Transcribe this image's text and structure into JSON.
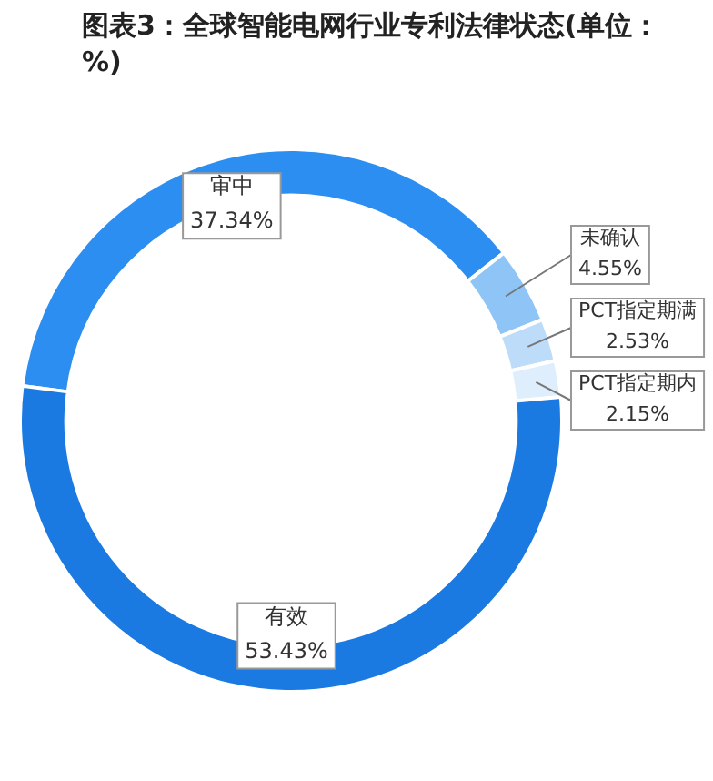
{
  "chart_data": {
    "type": "donut",
    "title": "图表3：全球智能电网行业专利法律状态(单位：%)",
    "categories": [
      "审中",
      "未确认",
      "PCT指定期满",
      "PCT指定期内",
      "有效"
    ],
    "values": [
      37.34,
      4.55,
      2.53,
      2.15,
      53.43
    ],
    "value_labels": [
      "37.34%",
      "4.55%",
      "2.53%",
      "2.15%",
      "53.43%"
    ],
    "colors": [
      "#2b8ef0",
      "#8ec5f6",
      "#bcdcfa",
      "#deeefd",
      "#1a7ae2"
    ],
    "legend": false
  }
}
